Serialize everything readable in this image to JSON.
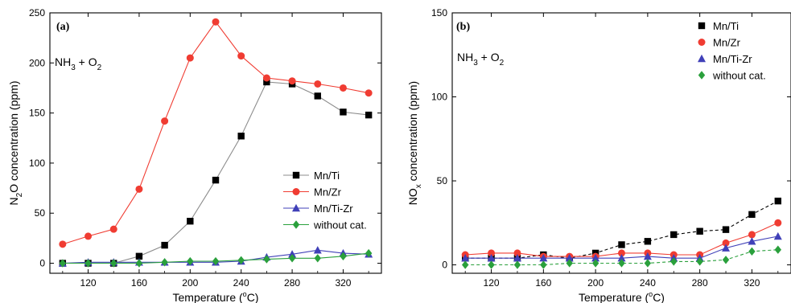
{
  "chart_data": [
    {
      "type": "line",
      "panel_label": "(a)",
      "annotation": {
        "main": "NH",
        "sub1": "3",
        "mid": " + O",
        "sub2": "2"
      },
      "xlabel": {
        "pre": "Temperature (",
        "sup": "o",
        "post": "C)"
      },
      "ylabel": {
        "pre": "N",
        "sub": "2",
        "post": "O concentration (ppm)"
      },
      "xlim": [
        90,
        350
      ],
      "ylim": [
        -10,
        250
      ],
      "x_ticks": [
        120,
        160,
        200,
        240,
        280,
        320
      ],
      "y_ticks": [
        0,
        50,
        100,
        150,
        200,
        250
      ],
      "legend_position": "center-right",
      "x": [
        100,
        120,
        140,
        160,
        180,
        200,
        220,
        240,
        260,
        280,
        300,
        320,
        340
      ],
      "series": [
        {
          "name": "Mn/Ti",
          "color": "#000000",
          "line_color": "#8c8c8c",
          "marker": "square",
          "dashed": false,
          "values": [
            0,
            0,
            0,
            7,
            18,
            42,
            83,
            127,
            181,
            179,
            167,
            151,
            148
          ]
        },
        {
          "name": "Mn/Zr",
          "color": "#f03c32",
          "line_color": "#f03c32",
          "marker": "circle",
          "dashed": false,
          "values": [
            19,
            27,
            34,
            74,
            142,
            205,
            241,
            207,
            185,
            182,
            179,
            175,
            170
          ]
        },
        {
          "name": "Mn/Ti-Zr",
          "color": "#4040b8",
          "line_color": "#4040b8",
          "marker": "triangle",
          "dashed": false,
          "values": [
            0,
            1,
            1,
            1,
            1,
            1,
            1,
            2,
            6,
            9,
            13,
            10,
            9
          ]
        },
        {
          "name": "without cat.",
          "color": "#2aa03c",
          "line_color": "#2aa03c",
          "marker": "diamond",
          "dashed": false,
          "values": [
            0,
            0,
            0,
            0,
            1,
            2,
            2,
            3,
            4,
            5,
            5,
            7,
            10
          ]
        }
      ]
    },
    {
      "type": "line",
      "panel_label": "(b)",
      "annotation": {
        "main": "NH",
        "sub1": "3",
        "mid": " + O",
        "sub2": "2"
      },
      "xlabel": {
        "pre": "Temperature (",
        "sup": "o",
        "post": "C)"
      },
      "ylabel": {
        "pre": "NO",
        "sub": "x",
        "post": " concentration (ppm)"
      },
      "xlim": [
        90,
        350
      ],
      "ylim": [
        -5,
        150
      ],
      "x_ticks": [
        120,
        160,
        200,
        240,
        280,
        320
      ],
      "y_ticks": [
        0,
        50,
        100,
        150
      ],
      "legend_position": "top-right",
      "x": [
        100,
        120,
        140,
        160,
        180,
        200,
        220,
        240,
        260,
        280,
        300,
        320,
        340
      ],
      "series": [
        {
          "name": "Mn/Ti",
          "color": "#000000",
          "line_color": "#000000",
          "marker": "square",
          "dashed": true,
          "values": [
            4,
            4,
            4,
            6,
            4,
            7,
            12,
            14,
            18,
            20,
            21,
            30,
            38
          ]
        },
        {
          "name": "Mn/Zr",
          "color": "#f03c32",
          "line_color": "#f03c32",
          "marker": "circle",
          "dashed": false,
          "values": [
            6,
            7,
            7,
            5,
            5,
            5,
            7,
            7,
            6,
            6,
            13,
            18,
            25
          ]
        },
        {
          "name": "Mn/Ti-Zr",
          "color": "#4040b8",
          "line_color": "#4040b8",
          "marker": "triangle",
          "dashed": false,
          "values": [
            4,
            4,
            4,
            4,
            4,
            4,
            4,
            5,
            4,
            4,
            10,
            14,
            17
          ]
        },
        {
          "name": "without cat.",
          "color": "#2aa03c",
          "line_color": "#2aa03c",
          "marker": "diamond",
          "dashed": true,
          "values": [
            0,
            0,
            0,
            0,
            1,
            1,
            1,
            1,
            2,
            2,
            3,
            8,
            9
          ]
        }
      ]
    }
  ]
}
